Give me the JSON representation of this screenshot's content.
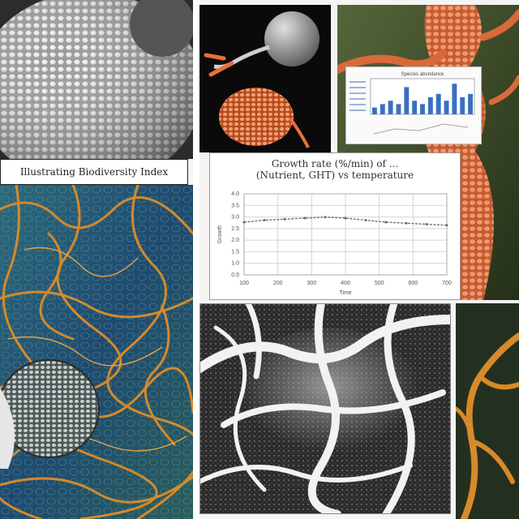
{
  "caption": {
    "text": "Illustrating Biodiversity Index"
  },
  "chart_data": {
    "type": "line",
    "title": "Growth rate (%/min) of ...",
    "subtitle": "(Nutrient, GHT) vs temperature",
    "xlabel": "Time",
    "ylabel": "Growth",
    "x": [
      0,
      50,
      100,
      150,
      200,
      250,
      300,
      350,
      400,
      450,
      500
    ],
    "y": [
      2.6,
      2.7,
      2.75,
      2.8,
      2.85,
      2.8,
      2.7,
      2.6,
      2.55,
      2.5,
      2.45
    ],
    "xlim": [
      0,
      500
    ],
    "ylim": [
      0,
      4
    ],
    "x_ticks": [
      "100",
      "200",
      "300",
      "400",
      "500",
      "600",
      "700"
    ],
    "y_ticks": [
      "4.0",
      "3.5",
      "3.0",
      "2.5",
      "2.0",
      "1.5",
      "1.0",
      "0.5"
    ],
    "grid": true,
    "color": "#6a6a6a"
  },
  "mini_chart": {
    "type": "bar",
    "title": "Species abundance",
    "values": [
      2,
      3,
      4,
      3,
      8,
      4,
      3,
      5,
      6,
      4,
      9,
      5,
      6
    ],
    "ylim": [
      0,
      10
    ],
    "color": "#3a70c0"
  },
  "colors": {
    "accent": "#e8703a",
    "network": "#d48a2a",
    "background": "#f4f4f2"
  }
}
